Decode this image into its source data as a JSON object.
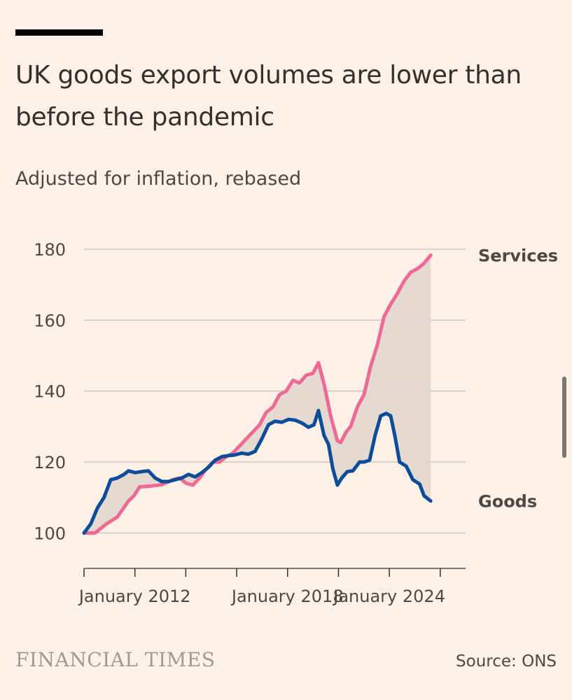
{
  "header": {
    "title": "UK goods export volumes are lower than before the pandemic",
    "subtitle": "Adjusted for inflation, rebased"
  },
  "footer": {
    "brand": "FINANCIAL TIMES",
    "source": "Source: ONS"
  },
  "colors": {
    "background": "#fff1e5",
    "services": "#ec6a94",
    "goods": "#0d4c99",
    "gap_fill": "#e3d8d1",
    "grid": "#ccc1b7",
    "text": "#33302e"
  },
  "chart_data": {
    "type": "line",
    "title": "UK goods export volumes are lower than before the pandemic",
    "subtitle": "Adjusted for inflation, rebased",
    "xlabel": "",
    "ylabel": "",
    "xlim": [
      2009.0,
      2026.17
    ],
    "ylim": [
      90,
      180
    ],
    "yticks": [
      100,
      120,
      140,
      160,
      180
    ],
    "xticks": [
      {
        "value": 2009.0,
        "label": ""
      },
      {
        "value": 2011.29,
        "label": "January 2012"
      },
      {
        "value": 2013.58,
        "label": ""
      },
      {
        "value": 2015.87,
        "label": ""
      },
      {
        "value": 2018.16,
        "label": "January 2018"
      },
      {
        "value": 2020.45,
        "label": ""
      },
      {
        "value": 2022.74,
        "label": "January 2024"
      },
      {
        "value": 2025.03,
        "label": ""
      }
    ],
    "shaded_gap_between_series": true,
    "series": [
      {
        "name": "Services",
        "end_label": "Services",
        "color": "#ec6a94",
        "points": [
          [
            2009.0,
            100
          ],
          [
            2009.5,
            100
          ],
          [
            2010.0,
            102.5
          ],
          [
            2010.5,
            104.5
          ],
          [
            2011.0,
            109
          ],
          [
            2011.25,
            110.5
          ],
          [
            2011.5,
            113
          ],
          [
            2012.0,
            113.2
          ],
          [
            2012.5,
            113.6
          ],
          [
            2013.0,
            115
          ],
          [
            2013.3,
            115.5
          ],
          [
            2013.6,
            114
          ],
          [
            2013.9,
            113.5
          ],
          [
            2014.2,
            115.5
          ],
          [
            2014.5,
            118
          ],
          [
            2014.8,
            120
          ],
          [
            2015.1,
            120
          ],
          [
            2015.4,
            121.5
          ],
          [
            2015.7,
            122.5
          ],
          [
            2016.0,
            124.5
          ],
          [
            2016.3,
            126.5
          ],
          [
            2016.6,
            128.5
          ],
          [
            2016.9,
            130.5
          ],
          [
            2017.2,
            134
          ],
          [
            2017.5,
            135.5
          ],
          [
            2017.8,
            139
          ],
          [
            2018.1,
            140
          ],
          [
            2018.4,
            143
          ],
          [
            2018.7,
            142.3
          ],
          [
            2019.0,
            144.5
          ],
          [
            2019.3,
            145
          ],
          [
            2019.55,
            148
          ],
          [
            2019.8,
            142
          ],
          [
            2020.1,
            133
          ],
          [
            2020.4,
            126
          ],
          [
            2020.55,
            125.5
          ],
          [
            2020.8,
            128.5
          ],
          [
            2021.0,
            130
          ],
          [
            2021.3,
            135.5
          ],
          [
            2021.6,
            139
          ],
          [
            2021.9,
            147
          ],
          [
            2022.2,
            153
          ],
          [
            2022.5,
            161
          ],
          [
            2022.8,
            164.5
          ],
          [
            2023.1,
            167.5
          ],
          [
            2023.4,
            171
          ],
          [
            2023.7,
            173.5
          ],
          [
            2024.0,
            174.5
          ],
          [
            2024.3,
            176
          ],
          [
            2024.6,
            178.3
          ]
        ]
      },
      {
        "name": "Goods",
        "end_label": "Goods",
        "color": "#0d4c99",
        "points": [
          [
            2009.0,
            100
          ],
          [
            2009.3,
            102.5
          ],
          [
            2009.6,
            107
          ],
          [
            2009.9,
            110
          ],
          [
            2010.2,
            115
          ],
          [
            2010.5,
            115.5
          ],
          [
            2010.8,
            116.5
          ],
          [
            2011.0,
            117.5
          ],
          [
            2011.3,
            117
          ],
          [
            2011.6,
            117.3
          ],
          [
            2011.9,
            117.5
          ],
          [
            2012.2,
            115.5
          ],
          [
            2012.5,
            114.5
          ],
          [
            2012.8,
            114.5
          ],
          [
            2013.1,
            115
          ],
          [
            2013.4,
            115.5
          ],
          [
            2013.7,
            116.5
          ],
          [
            2014.0,
            115.8
          ],
          [
            2014.3,
            117
          ],
          [
            2014.6,
            118.5
          ],
          [
            2014.9,
            120.5
          ],
          [
            2015.2,
            121.5
          ],
          [
            2015.5,
            121.8
          ],
          [
            2015.8,
            122
          ],
          [
            2016.1,
            122.5
          ],
          [
            2016.4,
            122.2
          ],
          [
            2016.7,
            123
          ],
          [
            2017.0,
            126.5
          ],
          [
            2017.3,
            130.5
          ],
          [
            2017.6,
            131.5
          ],
          [
            2017.9,
            131.2
          ],
          [
            2018.2,
            132
          ],
          [
            2018.5,
            131.8
          ],
          [
            2018.8,
            131
          ],
          [
            2019.1,
            129.8
          ],
          [
            2019.35,
            130.5
          ],
          [
            2019.55,
            134.5
          ],
          [
            2019.8,
            127.5
          ],
          [
            2020.0,
            125
          ],
          [
            2020.2,
            118
          ],
          [
            2020.4,
            113.5
          ],
          [
            2020.6,
            115.5
          ],
          [
            2020.85,
            117.3
          ],
          [
            2021.1,
            117.5
          ],
          [
            2021.4,
            120
          ],
          [
            2021.6,
            120
          ],
          [
            2021.85,
            120.5
          ],
          [
            2022.1,
            127.5
          ],
          [
            2022.35,
            133
          ],
          [
            2022.6,
            133.7
          ],
          [
            2022.8,
            133
          ],
          [
            2023.0,
            127
          ],
          [
            2023.2,
            120
          ],
          [
            2023.5,
            118.8
          ],
          [
            2023.8,
            115
          ],
          [
            2024.1,
            113.8
          ],
          [
            2024.3,
            110.5
          ],
          [
            2024.6,
            109
          ]
        ]
      }
    ]
  }
}
